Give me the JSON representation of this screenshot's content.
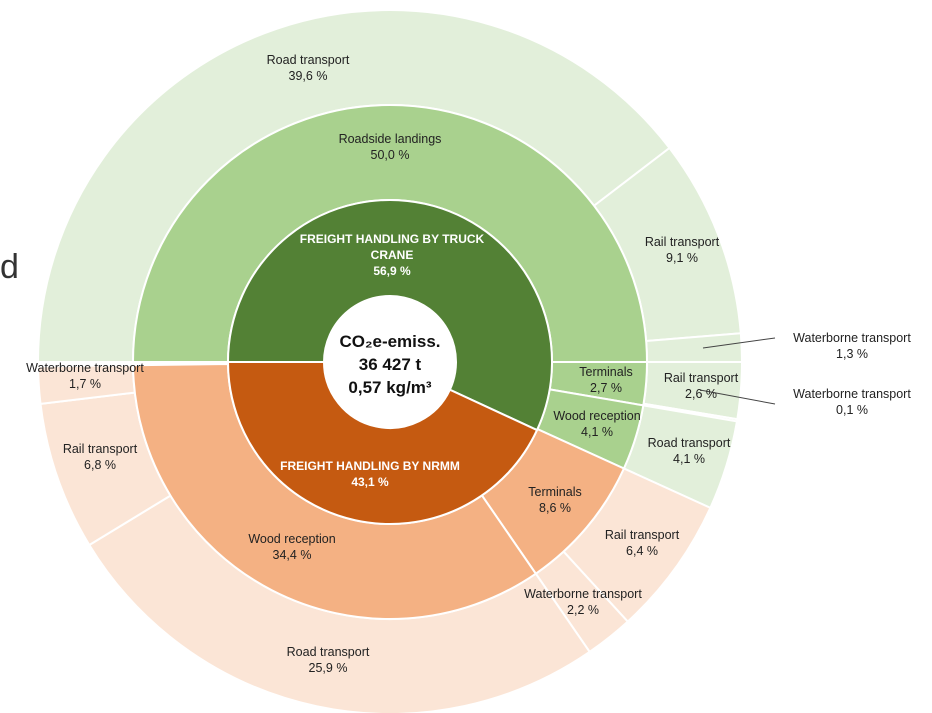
{
  "chart_data": {
    "type": "sunburst",
    "edge_text": "d",
    "center": {
      "line1": "CO₂e-emiss.",
      "line2": "36 427 t",
      "line3": "0,57 kg/m³"
    },
    "colors": {
      "inner_truck": "#538135",
      "inner_nrmm": "#c55a11",
      "middle_truck": "#a9d18e",
      "middle_nrmm": "#f4b183",
      "outer_truck": "#e2efda",
      "outer_nrmm": "#fbe5d6"
    },
    "inner": [
      {
        "name": "FREIGHT HANDLING BY TRUCK CRANE",
        "value": 56.9,
        "pct": "56,9 %",
        "group": "truck"
      },
      {
        "name": "FREIGHT HANDLING BY NRMM",
        "value": 43.1,
        "pct": "43,1 %",
        "group": "nrmm"
      }
    ],
    "middle": [
      {
        "name": "Roadside landings",
        "value": 50.0,
        "pct": "50,0 %",
        "group": "truck"
      },
      {
        "name": "Terminals",
        "value": 2.7,
        "pct": "2,7 %",
        "group": "truck"
      },
      {
        "name": "Wood reception",
        "value": 4.1,
        "pct": "4,1 %",
        "group": "truck"
      },
      {
        "name": "Terminals",
        "value": 8.6,
        "pct": "8,6 %",
        "group": "nrmm"
      },
      {
        "name": "Wood reception",
        "value": 34.4,
        "pct": "34,4 %",
        "group": "nrmm"
      }
    ],
    "outer": [
      {
        "name": "Road transport",
        "value": 39.6,
        "pct": "39,6 %",
        "group": "truck"
      },
      {
        "name": "Rail transport",
        "value": 9.1,
        "pct": "9,1 %",
        "group": "truck"
      },
      {
        "name": "Waterborne transport",
        "value": 1.3,
        "pct": "1,3 %",
        "group": "truck"
      },
      {
        "name": "Rail transport",
        "value": 2.6,
        "pct": "2,6 %",
        "group": "truck"
      },
      {
        "name": "Waterborne transport",
        "value": 0.1,
        "pct": "0,1 %",
        "group": "truck"
      },
      {
        "name": "Road transport",
        "value": 4.1,
        "pct": "4,1 %",
        "group": "truck"
      },
      {
        "name": "Rail transport",
        "value": 6.4,
        "pct": "6,4 %",
        "group": "nrmm"
      },
      {
        "name": "Waterborne transport",
        "value": 2.2,
        "pct": "2,2 %",
        "group": "nrmm"
      },
      {
        "name": "Road transport",
        "value": 25.9,
        "pct": "25,9 %",
        "group": "nrmm"
      },
      {
        "name": "Rail transport",
        "value": 6.8,
        "pct": "6,8 %",
        "group": "nrmm"
      },
      {
        "name": "Waterborne transport",
        "value": 1.7,
        "pct": "1,7 %",
        "group": "nrmm"
      }
    ]
  }
}
